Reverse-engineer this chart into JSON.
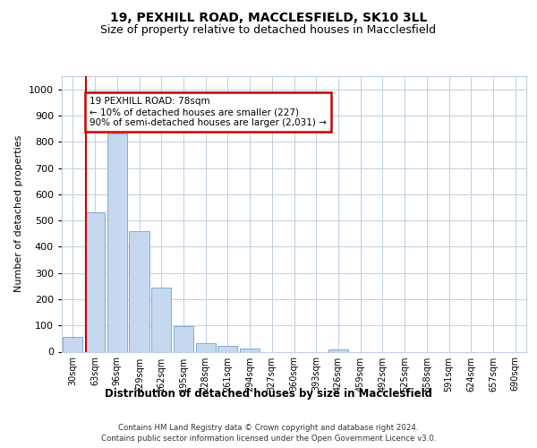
{
  "title1": "19, PEXHILL ROAD, MACCLESFIELD, SK10 3LL",
  "title2": "Size of property relative to detached houses in Macclesfield",
  "xlabel": "Distribution of detached houses by size in Macclesfield",
  "ylabel": "Number of detached properties",
  "bar_labels": [
    "30sqm",
    "63sqm",
    "96sqm",
    "129sqm",
    "162sqm",
    "195sqm",
    "228sqm",
    "261sqm",
    "294sqm",
    "327sqm",
    "360sqm",
    "393sqm",
    "426sqm",
    "459sqm",
    "492sqm",
    "525sqm",
    "558sqm",
    "591sqm",
    "624sqm",
    "657sqm",
    "690sqm"
  ],
  "bar_values": [
    55,
    530,
    830,
    460,
    245,
    97,
    34,
    22,
    11,
    0,
    0,
    0,
    10,
    0,
    0,
    0,
    0,
    0,
    0,
    0,
    0
  ],
  "bar_color": "#c5d8f0",
  "bar_edge_color": "#7aadd4",
  "annotation_text": "19 PEXHILL ROAD: 78sqm\n← 10% of detached houses are smaller (227)\n90% of semi-detached houses are larger (2,031) →",
  "annotation_box_color": "#ffffff",
  "annotation_box_edge": "#cc0000",
  "footer1": "Contains HM Land Registry data © Crown copyright and database right 2024.",
  "footer2": "Contains public sector information licensed under the Open Government Licence v3.0.",
  "ylim": [
    0,
    1050
  ],
  "yticks": [
    0,
    100,
    200,
    300,
    400,
    500,
    600,
    700,
    800,
    900,
    1000
  ],
  "background_color": "#ffffff",
  "grid_color": "#c0cfe0",
  "title1_fontsize": 10,
  "title2_fontsize": 9
}
